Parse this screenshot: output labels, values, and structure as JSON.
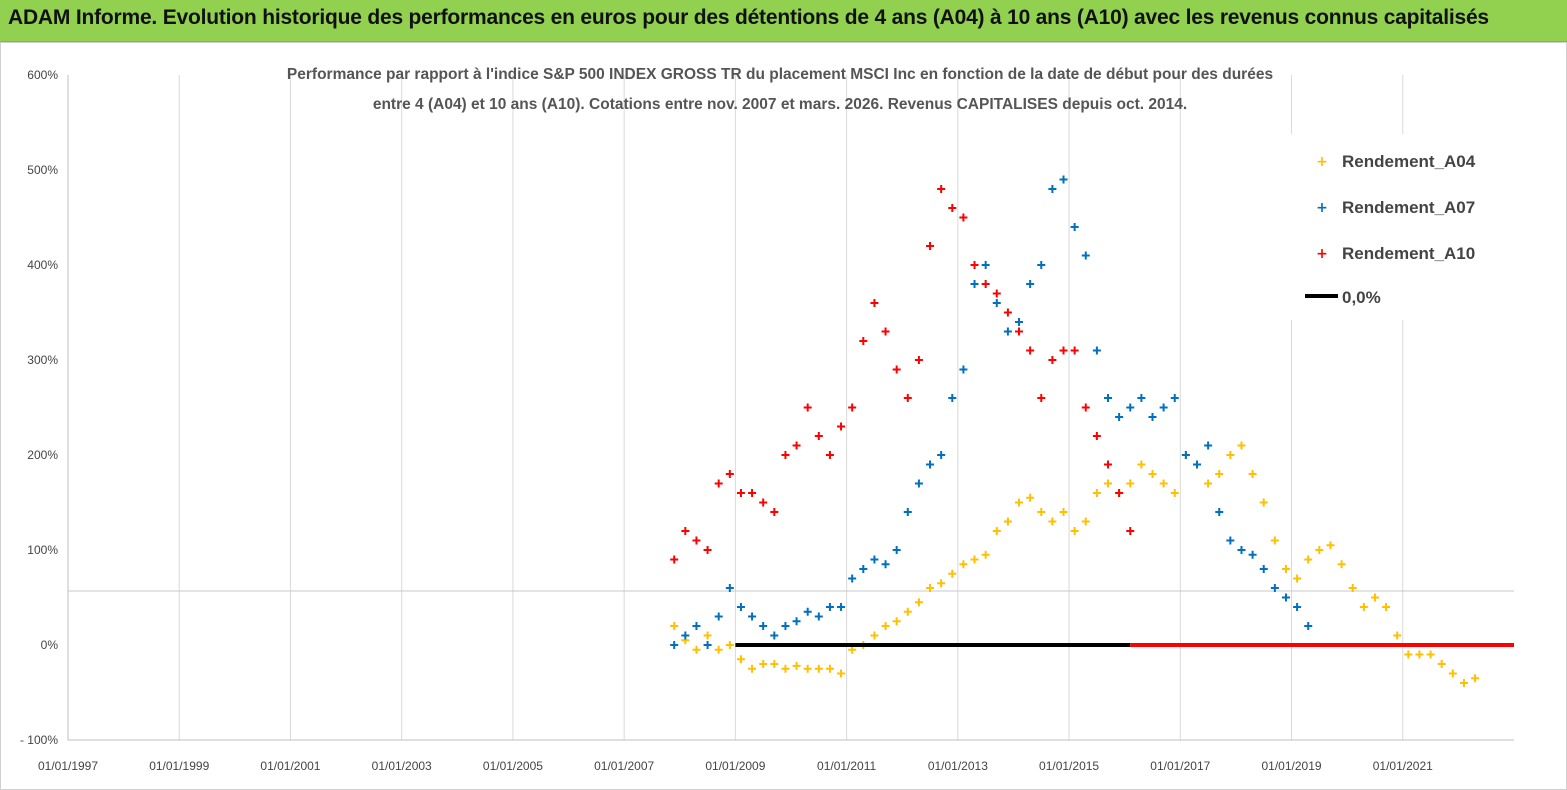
{
  "banner": {
    "title": "ADAM Informe. Evolution historique des performances en euros pour des détentions de 4 ans (A04) à 10 ans (A10) avec les revenus connus capitalisés"
  },
  "colors": {
    "A04": "#ffc000",
    "A07": "#0070c0",
    "A10": "#ff0000",
    "zero": "#000000",
    "banner": "#92d050",
    "grid": "#d9d9d9"
  },
  "chart_data": {
    "type": "scatter",
    "title_line1": "Performance par rapport à l'indice S&P 500 INDEX GROSS TR  du placement MSCI Inc en fonction de la date de début pour des durées",
    "title_line2": "entre 4 (A04) et 10 ans (A10). Cotations entre nov. 2007 et mars. 2026. Revenus CAPITALISES depuis oct. 2014.",
    "ylim": [
      -100,
      600
    ],
    "yticks": [
      -100,
      0,
      100,
      200,
      300,
      400,
      500,
      600
    ],
    "ytick_labels": [
      "- 100%",
      "0%",
      "100%",
      "200%",
      "300%",
      "400%",
      "500%",
      "600%"
    ],
    "xlim": [
      1997.0,
      2023.0
    ],
    "xticks": [
      1997,
      1999,
      2001,
      2003,
      2005,
      2007,
      2009,
      2011,
      2013,
      2015,
      2017,
      2019,
      2021
    ],
    "xtick_labels": [
      "01/01/1997",
      "01/01/1999",
      "01/01/2001",
      "01/01/2003",
      "01/01/2005",
      "01/01/2007",
      "01/01/2009",
      "01/01/2011",
      "01/01/2013",
      "01/01/2015",
      "01/01/2017",
      "01/01/2019",
      "01/01/2021"
    ],
    "grid": "vertical",
    "legend_position": "top-right",
    "series": [
      {
        "name": "Rendement_A04",
        "key": "A04",
        "x": [
          2007.9,
          2008.1,
          2008.3,
          2008.5,
          2008.7,
          2008.9,
          2009.1,
          2009.3,
          2009.5,
          2009.7,
          2009.9,
          2010.1,
          2010.3,
          2010.5,
          2010.7,
          2010.9,
          2011.1,
          2011.3,
          2011.5,
          2011.7,
          2011.9,
          2012.1,
          2012.3,
          2012.5,
          2012.7,
          2012.9,
          2013.1,
          2013.3,
          2013.5,
          2013.7,
          2013.9,
          2014.1,
          2014.3,
          2014.5,
          2014.7,
          2014.9,
          2015.1,
          2015.3,
          2015.5,
          2015.7,
          2015.9,
          2016.1,
          2016.3,
          2016.5,
          2016.7,
          2016.9,
          2017.1,
          2017.3,
          2017.5,
          2017.7,
          2017.9,
          2018.1,
          2018.3,
          2018.5,
          2018.7,
          2018.9,
          2019.1,
          2019.3,
          2019.5,
          2019.7,
          2019.9,
          2020.1,
          2020.3,
          2020.5,
          2020.7,
          2020.9,
          2021.1,
          2021.3,
          2021.5,
          2021.7,
          2021.9,
          2022.1,
          2022.3
        ],
        "y": [
          20,
          5,
          -5,
          10,
          -5,
          0,
          -15,
          -25,
          -20,
          -20,
          -25,
          -22,
          -25,
          -25,
          -25,
          -30,
          -5,
          0,
          10,
          20,
          25,
          35,
          45,
          60,
          65,
          75,
          85,
          90,
          95,
          120,
          130,
          150,
          155,
          140,
          130,
          140,
          120,
          130,
          160,
          170,
          160,
          170,
          190,
          180,
          170,
          160,
          200,
          190,
          170,
          180,
          200,
          210,
          180,
          150,
          110,
          80,
          70,
          90,
          100,
          105,
          85,
          60,
          40,
          50,
          40,
          10,
          -10,
          -10,
          -10,
          -20,
          -30,
          -40,
          -35
        ]
      },
      {
        "name": "Rendement_A07",
        "key": "A07",
        "x": [
          2007.9,
          2008.1,
          2008.3,
          2008.5,
          2008.7,
          2008.9,
          2009.1,
          2009.3,
          2009.5,
          2009.7,
          2009.9,
          2010.1,
          2010.3,
          2010.5,
          2010.7,
          2010.9,
          2011.1,
          2011.3,
          2011.5,
          2011.7,
          2011.9,
          2012.1,
          2012.3,
          2012.5,
          2012.7,
          2012.9,
          2013.1,
          2013.3,
          2013.5,
          2013.7,
          2013.9,
          2014.1,
          2014.3,
          2014.5,
          2014.7,
          2014.9,
          2015.1,
          2015.3,
          2015.5,
          2015.7,
          2015.9,
          2016.1,
          2016.3,
          2016.5,
          2016.7,
          2016.9,
          2017.1,
          2017.3,
          2017.5,
          2017.7,
          2017.9,
          2018.1,
          2018.3,
          2018.5,
          2018.7,
          2018.9,
          2019.1,
          2019.3
        ],
        "y": [
          0,
          10,
          20,
          0,
          30,
          60,
          40,
          30,
          20,
          10,
          20,
          25,
          35,
          30,
          40,
          40,
          70,
          80,
          90,
          85,
          100,
          140,
          170,
          190,
          200,
          260,
          290,
          380,
          400,
          360,
          330,
          340,
          380,
          400,
          480,
          490,
          440,
          410,
          310,
          260,
          240,
          250,
          260,
          240,
          250,
          260,
          200,
          190,
          210,
          140,
          110,
          100,
          95,
          80,
          60,
          50,
          40,
          20
        ]
      },
      {
        "name": "Rendement_A10",
        "key": "A10",
        "x": [
          2007.9,
          2008.1,
          2008.3,
          2008.5,
          2008.7,
          2008.9,
          2009.1,
          2009.3,
          2009.5,
          2009.7,
          2009.9,
          2010.1,
          2010.3,
          2010.5,
          2010.7,
          2010.9,
          2011.1,
          2011.3,
          2011.5,
          2011.7,
          2011.9,
          2012.1,
          2012.3,
          2012.5,
          2012.7,
          2012.9,
          2013.1,
          2013.3,
          2013.5,
          2013.7,
          2013.9,
          2014.1,
          2014.3,
          2014.5,
          2014.7,
          2014.9,
          2015.1,
          2015.3,
          2015.5,
          2015.7,
          2015.9,
          2016.1
        ],
        "y": [
          90,
          120,
          110,
          100,
          170,
          180,
          160,
          160,
          150,
          140,
          200,
          210,
          250,
          220,
          200,
          230,
          250,
          320,
          360,
          330,
          290,
          260,
          300,
          420,
          480,
          460,
          450,
          400,
          380,
          370,
          350,
          330,
          310,
          260,
          300,
          310,
          310,
          250,
          220,
          190,
          160,
          120
        ]
      }
    ],
    "zero_line": {
      "name": "0,0%",
      "y": 0,
      "segments": [
        {
          "x0": 2009.0,
          "x1": 2016.1,
          "color": "#000000"
        },
        {
          "x0": 2016.1,
          "x1": 2023.0,
          "color": "#ff0000"
        }
      ]
    }
  }
}
